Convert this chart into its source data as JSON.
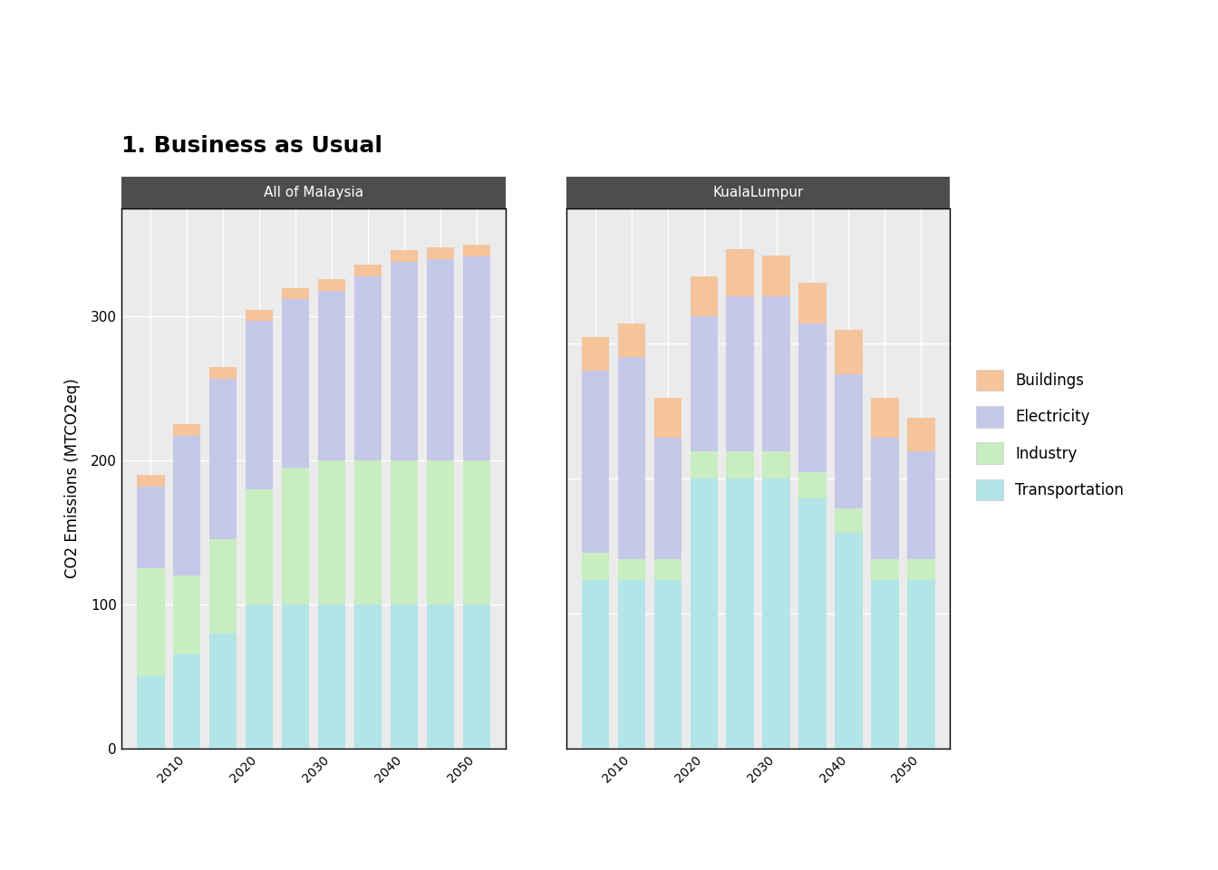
{
  "title": "1. Business as Usual",
  "ylabel": "CO2 Emissions (MTCO2eq)",
  "panels": [
    "All of Malaysia",
    "KualaLumpur"
  ],
  "years": [
    2005,
    2010,
    2015,
    2020,
    2025,
    2030,
    2035,
    2040,
    2045,
    2050
  ],
  "xtick_labels": [
    "",
    "2010",
    "",
    "2020",
    "",
    "2030",
    "",
    "2040",
    "",
    "2050"
  ],
  "malaysia": {
    "transportation": [
      50,
      65,
      80,
      100,
      100,
      100,
      100,
      100,
      100,
      100
    ],
    "industry": [
      75,
      55,
      65,
      80,
      95,
      100,
      100,
      100,
      100,
      100
    ],
    "electricity": [
      57,
      97,
      112,
      117,
      117,
      118,
      128,
      138,
      140,
      142
    ],
    "buildings": [
      8,
      8,
      8,
      8,
      8,
      8,
      8,
      8,
      8,
      8
    ]
  },
  "kl": {
    "transportation": [
      2.5,
      2.5,
      2.5,
      4.0,
      4.0,
      4.0,
      3.7,
      3.2,
      2.5,
      2.5
    ],
    "industry": [
      0.4,
      0.3,
      0.3,
      0.4,
      0.4,
      0.4,
      0.4,
      0.35,
      0.3,
      0.3
    ],
    "electricity": [
      2.7,
      3.0,
      1.8,
      2.0,
      2.3,
      2.3,
      2.2,
      2.0,
      1.8,
      1.6
    ],
    "buildings": [
      0.5,
      0.5,
      0.6,
      0.6,
      0.7,
      0.6,
      0.6,
      0.65,
      0.6,
      0.5
    ]
  },
  "colors": {
    "transportation": "#b2e4e8",
    "industry": "#c8edc0",
    "electricity": "#c5c8e8",
    "buildings": "#f5c49a"
  },
  "panel_header_color": "#4d4d4d",
  "malaysia_ylim": [
    0,
    375
  ],
  "malaysia_yticks": [
    0,
    100,
    200,
    300
  ],
  "kl_ylim": [
    0,
    8.0
  ],
  "kl_yticks": [
    0,
    2,
    4,
    6
  ],
  "bar_width": 3.8,
  "plot_bg_color": "#ebebeb"
}
